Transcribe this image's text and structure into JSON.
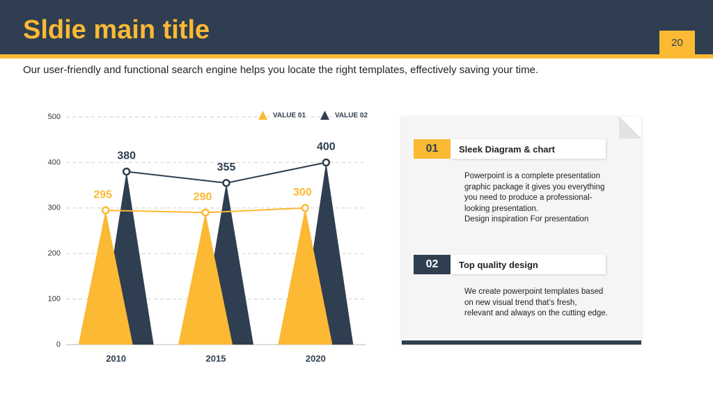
{
  "header": {
    "title": "Sldie main title",
    "page_number": "20"
  },
  "subtitle": "Our user-friendly and functional search engine helps you locate the right templates, effectively saving your time.",
  "chart_data": {
    "type": "triangle",
    "categories": [
      "2010",
      "2015",
      "2020"
    ],
    "series": [
      {
        "name": "VALUE 01",
        "color": "#fbb934",
        "values": [
          295,
          290,
          300
        ]
      },
      {
        "name": "VALUE 02",
        "color": "#2f3e50",
        "values": [
          380,
          355,
          400
        ]
      }
    ],
    "ylim": [
      0,
      500
    ],
    "yticks": [
      0,
      100,
      200,
      300,
      400,
      500
    ],
    "grid": true
  },
  "items": [
    {
      "number": "01",
      "title": "Sleek Diagram & chart",
      "body": [
        "Powerpoint is a complete presentation",
        "graphic package it gives you everything",
        "you need to produce a professional-",
        "looking presentation.",
        "Design inspiration For presentation"
      ]
    },
    {
      "number": "02",
      "title": "Top quality design",
      "body": [
        "We create powerpoint templates based",
        "on new visual trend that’s fresh,",
        "relevant and always on the cutting edge."
      ]
    }
  ]
}
